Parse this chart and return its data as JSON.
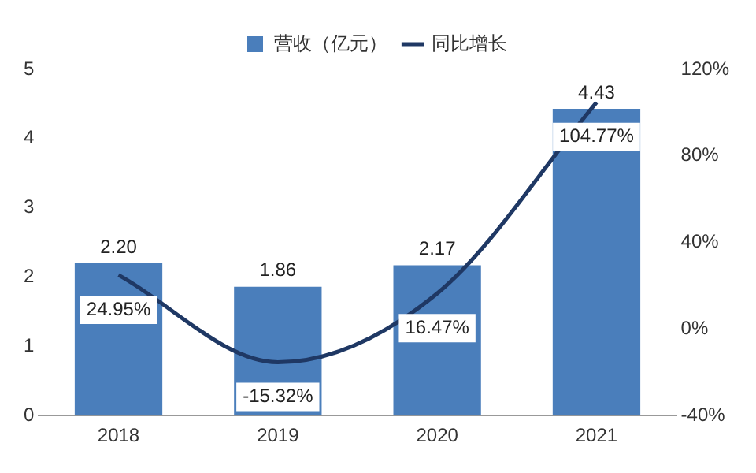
{
  "chart_data": {
    "type": "bar",
    "categories": [
      "2018",
      "2019",
      "2020",
      "2021"
    ],
    "series": [
      {
        "name": "营收（亿元）",
        "color": "#4a7ebb",
        "values": [
          2.2,
          1.86,
          2.17,
          4.43
        ],
        "value_labels": [
          "2.20",
          "1.86",
          "2.17",
          "4.43"
        ]
      },
      {
        "name": "同比增长",
        "type": "line",
        "axis": "y2",
        "color": "#1f3864",
        "values": [
          24.95,
          -15.32,
          16.47,
          104.77
        ],
        "value_labels": [
          "24.95%",
          "-15.32%",
          "16.47%",
          "104.77%"
        ]
      }
    ],
    "ylim": [
      0,
      5
    ],
    "yticks": [
      0,
      1,
      2,
      3,
      4,
      5
    ],
    "y2lim": [
      -40,
      120
    ],
    "y2ticks": [
      {
        "value": -40,
        "label": "-40%"
      },
      {
        "value": 0,
        "label": "0%"
      },
      {
        "value": 40,
        "label": "40%"
      },
      {
        "value": 80,
        "label": "80%"
      },
      {
        "value": 120,
        "label": "120%"
      }
    ],
    "legend": "top",
    "marker": "none"
  }
}
